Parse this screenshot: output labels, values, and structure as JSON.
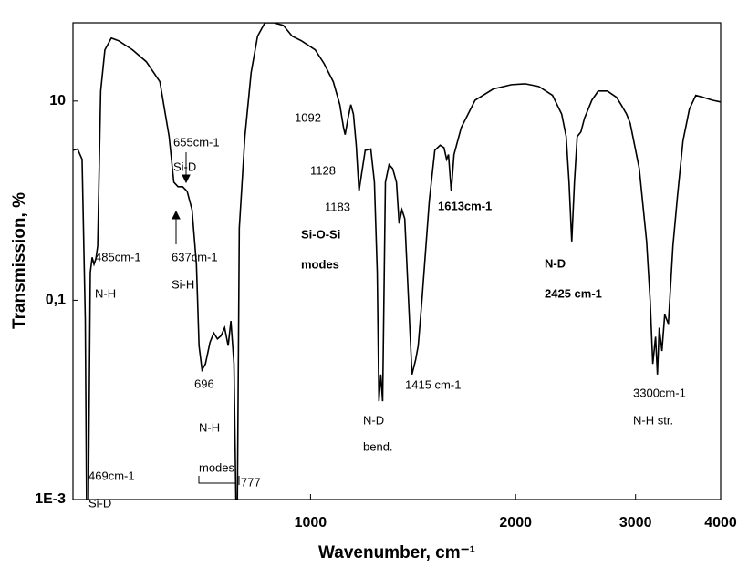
{
  "chart_data": {
    "type": "line",
    "xlabel": "Wavenumber, cm⁻¹",
    "ylabel": "Transmission, %",
    "xlog": true,
    "ylog": true,
    "color": "#000000",
    "xlim": [
      448,
      4000
    ],
    "ylim": [
      0.001,
      61
    ],
    "xticks": [
      1000,
      2000,
      3000,
      4000
    ],
    "yticks": [
      {
        "value": 0.001,
        "label": "1E-3"
      },
      {
        "value": 0.1,
        "label": "0,1"
      },
      10
    ],
    "x": [
      448,
      455,
      462,
      467,
      469,
      472,
      475,
      478,
      481,
      484,
      487,
      492,
      499,
      510,
      523,
      548,
      574,
      601,
      620,
      630,
      639,
      649,
      659,
      670,
      680,
      686,
      693,
      701,
      712,
      721,
      730,
      739,
      748,
      757,
      764,
      772,
      777,
      781,
      786,
      801,
      818,
      836,
      857,
      884,
      912,
      940,
      970,
      1016,
      1047,
      1080,
      1104,
      1118,
      1124,
      1135,
      1146,
      1156,
      1167,
      1178,
      1189,
      1203,
      1226,
      1241,
      1253,
      1260,
      1268,
      1276,
      1288,
      1304,
      1320,
      1337,
      1349,
      1362,
      1375,
      1391,
      1409,
      1426,
      1439,
      1457,
      1494,
      1522,
      1550,
      1570,
      1584,
      1594,
      1609,
      1624,
      1664,
      1744,
      1854,
      1972,
      2065,
      2163,
      2266,
      2337,
      2373,
      2396,
      2418,
      2440,
      2463,
      2494,
      2524,
      2588,
      2644,
      2727,
      2813,
      2857,
      2910,
      2946,
      3038,
      3114,
      3152,
      3180,
      3210,
      3230,
      3250,
      3280,
      3311,
      3352,
      3404,
      3457,
      3522,
      3599,
      3678,
      3771,
      3889,
      4000
    ],
    "values": [
      3.2,
      3.3,
      2.6,
      0.065,
      0.001,
      0.001,
      0.19,
      0.27,
      0.23,
      0.26,
      0.35,
      12.6,
      32.6,
      42.9,
      40.2,
      32.6,
      24.8,
      15.6,
      4.4,
      1.53,
      1.38,
      1.38,
      1.24,
      0.81,
      0.23,
      0.035,
      0.02,
      0.023,
      0.038,
      0.047,
      0.041,
      0.044,
      0.053,
      0.035,
      0.062,
      0.023,
      0.001,
      0.001,
      0.53,
      4.4,
      19.2,
      44.7,
      61,
      61,
      57.5,
      44.7,
      40.2,
      32.6,
      23.7,
      15.6,
      9.2,
      5.4,
      4.6,
      6.7,
      9.2,
      7.4,
      3.6,
      1.24,
      1.9,
      3.2,
      3.3,
      1.53,
      0.19,
      0.0097,
      0.018,
      0.0097,
      1.53,
      2.3,
      2.1,
      1.53,
      0.59,
      0.81,
      0.66,
      0.12,
      0.018,
      0.025,
      0.035,
      0.099,
      1.0,
      3.2,
      3.6,
      3.4,
      2.6,
      2.9,
      1.24,
      2.9,
      5.4,
      10.2,
      13.2,
      14.6,
      14.9,
      14.0,
      11.4,
      7.4,
      4.4,
      1.53,
      0.39,
      1.53,
      4.4,
      4.9,
      6.7,
      10.2,
      12.6,
      12.6,
      10.9,
      9.2,
      7.4,
      6.0,
      2.1,
      0.39,
      0.099,
      0.023,
      0.043,
      0.018,
      0.053,
      0.031,
      0.072,
      0.058,
      0.35,
      1.12,
      4.0,
      8.3,
      11.4,
      10.9,
      10.2,
      9.8
    ],
    "annotations": [
      "655cm-1",
      "Si-D",
      "1092",
      "1128",
      "1183",
      "Si-O-Si",
      "modes",
      "1613cm-1",
      "485cm-1",
      "N-H",
      "637cm-1",
      "Si-H",
      "N-D",
      "2425 cm-1",
      "696",
      "1415 cm-1",
      "3300cm-1",
      "N-H str.",
      "N-H",
      "N-D",
      "modes",
      "bend.",
      "469cm-1",
      "Si-D",
      "777"
    ]
  }
}
